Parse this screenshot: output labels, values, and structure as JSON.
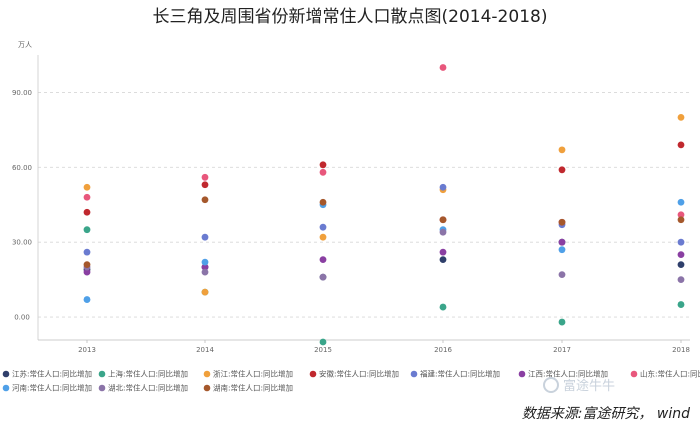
{
  "chart_data": {
    "type": "scatter",
    "title": "长三角及周围省份新增常住人口散点图(2014-2018)",
    "y_unit": "万人",
    "categories": [
      "2013",
      "2014",
      "2015",
      "2016",
      "2017",
      "2018"
    ],
    "y_ticks": [
      "0.00",
      "30.00",
      "60.00",
      "90.00"
    ],
    "y_tick_values": [
      0,
      30,
      60,
      90
    ],
    "ylim": [
      -12,
      105
    ],
    "grid": true,
    "legend_position": "bottom",
    "series": [
      {
        "name": "江苏:常住人口:同比增加",
        "color": "#2f3f6b",
        "values": [
          19,
          20,
          16,
          23,
          30,
          21
        ]
      },
      {
        "name": "上海:常住人口:同比增加",
        "color": "#3aa58a",
        "values": [
          35,
          10,
          -10,
          4,
          -2,
          5
        ]
      },
      {
        "name": "浙江:常住人口:同比增加",
        "color": "#f0a03c",
        "values": [
          52,
          10,
          32,
          51,
          67,
          80
        ]
      },
      {
        "name": "安徽:常住人口:同比增加",
        "color": "#c0282e",
        "values": [
          42,
          53,
          61,
          39,
          59,
          69
        ]
      },
      {
        "name": "福建:常住人口:同比增加",
        "color": "#6a7bd0",
        "values": [
          26,
          32,
          36,
          52,
          37,
          30
        ]
      },
      {
        "name": "江西:常住人口:同比增加",
        "color": "#8a3fa2",
        "values": [
          18,
          20,
          23,
          26,
          30,
          25
        ]
      },
      {
        "name": "山东:常住人口:同比增加",
        "color": "#e8577c",
        "values": [
          48,
          56,
          58,
          100,
          38,
          41
        ]
      },
      {
        "name": "河南:常住人口:同比增加",
        "color": "#4fa0e8",
        "values": [
          7,
          22,
          45,
          35,
          27,
          46
        ]
      },
      {
        "name": "湖北:常住人口:同比增加",
        "color": "#8b74a8",
        "values": [
          20,
          18,
          16,
          34,
          17,
          15
        ]
      },
      {
        "name": "湖南:常住人口:同比增加",
        "color": "#a5582c",
        "values": [
          21,
          47,
          46,
          39,
          38,
          39
        ]
      }
    ],
    "source": "数据来源:富途研究， wind",
    "watermark": "富途牛牛"
  }
}
